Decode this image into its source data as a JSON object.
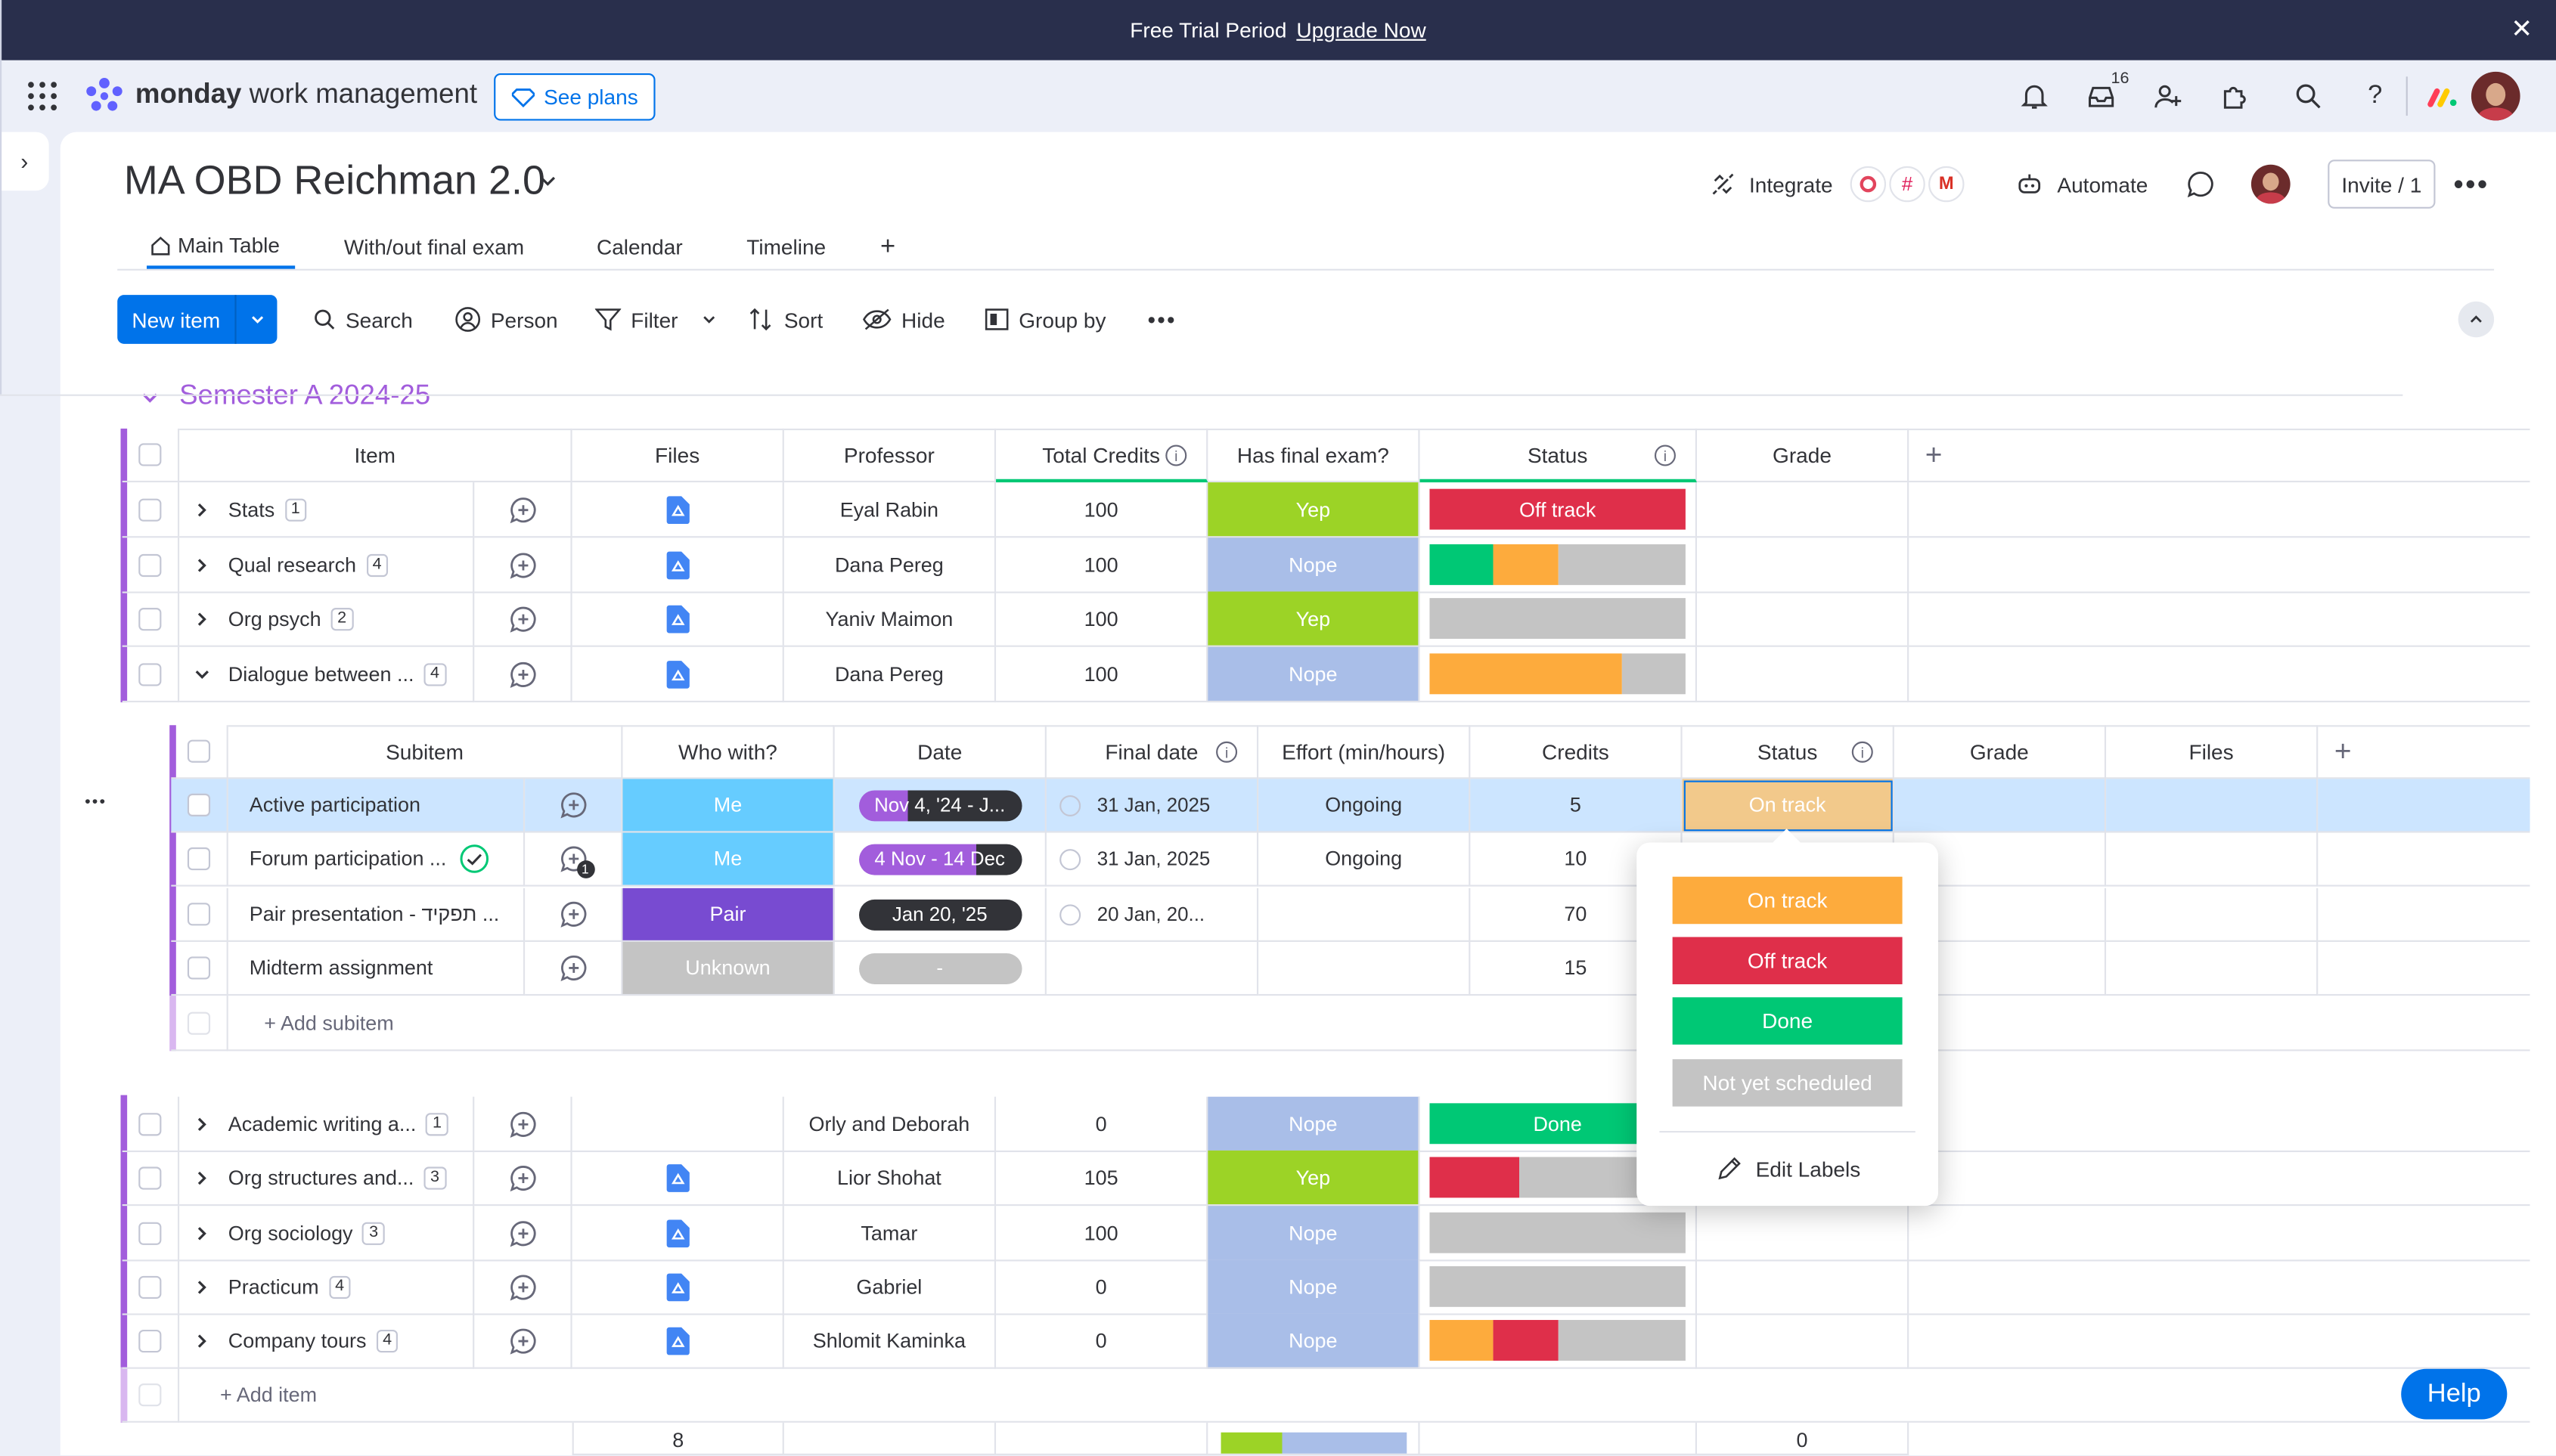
{
  "trial_bar": {
    "text": "Free Trial Period",
    "link": "Upgrade Now"
  },
  "brand": {
    "bold": "monday",
    "rest": "work management"
  },
  "see_plans": "See plans",
  "header": {
    "notification_count": "16"
  },
  "board": {
    "title": "MA OBD Reichman 2.0",
    "integrate": "Integrate",
    "automate": "Automate",
    "invite": "Invite / 1"
  },
  "tabs": [
    "Main Table",
    "With/out final exam",
    "Calendar",
    "Timeline"
  ],
  "toolbar": {
    "new_item": "New item",
    "search": "Search",
    "person": "Person",
    "filter": "Filter",
    "sort": "Sort",
    "hide": "Hide",
    "group_by": "Group by"
  },
  "group": {
    "title": "Semester A 2024-25"
  },
  "columns": [
    "Item",
    "Files",
    "Professor",
    "Total Credits",
    "Has final exam?",
    "Status",
    "Grade"
  ],
  "colors": {
    "yep": "#9cd326",
    "nope": "#a9bee8",
    "off_track": "#df2f4a",
    "on_track": "#fdab3d",
    "done": "#00c875",
    "grey": "#c4c4c4",
    "me": "#66ccff",
    "pair": "#784bd1",
    "unknown": "#c4c4c4",
    "accent": "#0073ea",
    "group": "#a25ddc"
  },
  "rows_top": [
    {
      "name": "Stats",
      "count": "1",
      "professor": "Eyal Rabin",
      "credits": "100",
      "exam": "Yep",
      "status": "Off track",
      "expanded": false
    },
    {
      "name": "Qual research",
      "count": "4",
      "professor": "Dana Pereg",
      "credits": "100",
      "exam": "Nope",
      "status": "",
      "expanded": false
    },
    {
      "name": "Org psych",
      "count": "2",
      "professor": "Yaniv Maimon",
      "credits": "100",
      "exam": "Yep",
      "status": "",
      "expanded": false
    },
    {
      "name": "Dialogue between ...",
      "count": "4",
      "professor": "Dana Pereg",
      "credits": "100",
      "exam": "Nope",
      "status": "",
      "expanded": true
    }
  ],
  "subitem_columns": [
    "Subitem",
    "Who with?",
    "Date",
    "Final date",
    "Effort (min/hours)",
    "Credits",
    "Status",
    "Grade",
    "Files"
  ],
  "subitems": [
    {
      "name": "Active participation",
      "who": "Me",
      "date": "Nov 4, '24 - J...",
      "final_date": "31 Jan, 2025",
      "effort": "Ongoing",
      "credits": "5",
      "status": "On track"
    },
    {
      "name": "Forum participation ...",
      "who": "Me",
      "date": "4 Nov - 14 Dec",
      "final_date": "31 Jan, 2025",
      "effort": "Ongoing",
      "credits": "10",
      "status": ""
    },
    {
      "name": "Pair presentation - תפקיד ...",
      "who": "Pair",
      "date": "Jan 20, '25",
      "final_date": "20 Jan, 20...",
      "effort": "",
      "credits": "70",
      "status": ""
    },
    {
      "name": "Midterm assignment",
      "who": "Unknown",
      "date": "-",
      "final_date": "",
      "effort": "",
      "credits": "15",
      "status": ""
    }
  ],
  "add_subitem": "+ Add subitem",
  "rows_bottom": [
    {
      "name": "Academic writing a...",
      "count": "1",
      "professor": "Orly and Deborah",
      "credits": "0",
      "exam": "Nope",
      "status": "Done"
    },
    {
      "name": "Org structures and...",
      "count": "3",
      "professor": "Lior Shohat",
      "credits": "105",
      "exam": "Yep",
      "status": ""
    },
    {
      "name": "Org sociology",
      "count": "3",
      "professor": "Tamar",
      "credits": "100",
      "exam": "Nope",
      "status": ""
    },
    {
      "name": "Practicum",
      "count": "4",
      "professor": "Gabriel",
      "credits": "0",
      "exam": "Nope",
      "status": ""
    },
    {
      "name": "Company tours",
      "count": "4",
      "professor": "Shlomit Kaminka",
      "credits": "0",
      "exam": "Nope",
      "status": ""
    }
  ],
  "add_item": "+ Add item",
  "summary": {
    "files": "8",
    "grade": "0"
  },
  "status_popup": {
    "options": [
      "On track",
      "Off track",
      "Done",
      "Not yet scheduled"
    ],
    "edit_labels": "Edit Labels"
  },
  "help": "Help"
}
